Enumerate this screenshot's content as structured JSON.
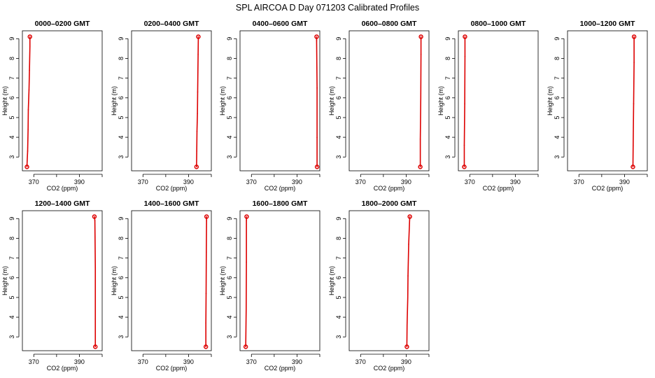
{
  "title": "SPL AIRCOA D  Day 071203  Calibrated Profiles",
  "chart_data": {
    "type": "line",
    "title": "SPL AIRCOA D  Day 071203  Calibrated Profiles",
    "xlabel": "CO2 (ppm)",
    "ylabel": "Height (m)",
    "xlim": [
      365,
      400
    ],
    "ylim": [
      2.3,
      9.4
    ],
    "xticks": [
      370,
      380,
      390,
      400
    ],
    "xtick_labels": [
      "370",
      "390"
    ],
    "yticks": [
      3,
      4,
      5,
      6,
      7,
      8,
      9
    ],
    "colors": {
      "line": "#dd0000",
      "marker": "#dd0000",
      "axis": "#000000"
    },
    "panels": [
      {
        "title": "0000–0200 GMT",
        "points": [
          {
            "x": 367.0,
            "y": 2.5
          },
          {
            "x": 367.1,
            "y": 2.8
          },
          {
            "x": 367.3,
            "y": 3.3
          },
          {
            "x": 367.5,
            "y": 4.4
          },
          {
            "x": 367.6,
            "y": 5.4
          },
          {
            "x": 367.9,
            "y": 6.4
          },
          {
            "x": 368.1,
            "y": 7.4
          },
          {
            "x": 368.3,
            "y": 8.6
          },
          {
            "x": 368.3,
            "y": 9.1
          }
        ]
      },
      {
        "title": "0200–0400 GMT",
        "points": [
          {
            "x": 393.5,
            "y": 2.5
          },
          {
            "x": 393.6,
            "y": 3.3
          },
          {
            "x": 393.7,
            "y": 4.3
          },
          {
            "x": 393.9,
            "y": 5.2
          },
          {
            "x": 394.0,
            "y": 6.3
          },
          {
            "x": 394.1,
            "y": 7.3
          },
          {
            "x": 394.2,
            "y": 8.2
          },
          {
            "x": 394.3,
            "y": 9.1
          }
        ]
      },
      {
        "title": "0400–0600 GMT",
        "points": [
          {
            "x": 398.8,
            "y": 2.5
          },
          {
            "x": 398.8,
            "y": 4.0
          },
          {
            "x": 398.8,
            "y": 6.5
          },
          {
            "x": 398.6,
            "y": 8.9
          },
          {
            "x": 398.6,
            "y": 9.1
          }
        ]
      },
      {
        "title": "0600–0800 GMT",
        "points": [
          {
            "x": 396.2,
            "y": 2.5
          },
          {
            "x": 396.2,
            "y": 3.9
          },
          {
            "x": 396.4,
            "y": 6.0
          },
          {
            "x": 396.5,
            "y": 8.2
          },
          {
            "x": 396.5,
            "y": 9.1
          }
        ]
      },
      {
        "title": "0800–1000 GMT",
        "points": [
          {
            "x": 367.6,
            "y": 2.5
          },
          {
            "x": 367.6,
            "y": 3.6
          },
          {
            "x": 367.8,
            "y": 5.7
          },
          {
            "x": 367.9,
            "y": 8.1
          },
          {
            "x": 367.9,
            "y": 9.1
          }
        ]
      },
      {
        "title": "1000–1200 GMT",
        "points": [
          {
            "x": 393.7,
            "y": 2.5
          },
          {
            "x": 393.8,
            "y": 3.6
          },
          {
            "x": 394.0,
            "y": 5.7
          },
          {
            "x": 394.2,
            "y": 7.8
          },
          {
            "x": 394.2,
            "y": 9.1
          }
        ]
      },
      {
        "title": "1200–1400 GMT",
        "points": [
          {
            "x": 397.0,
            "y": 2.5
          },
          {
            "x": 397.0,
            "y": 3.9
          },
          {
            "x": 397.0,
            "y": 6.5
          },
          {
            "x": 396.8,
            "y": 8.9
          },
          {
            "x": 396.6,
            "y": 9.1
          }
        ]
      },
      {
        "title": "1400–1600 GMT",
        "points": [
          {
            "x": 397.6,
            "y": 2.5
          },
          {
            "x": 397.6,
            "y": 3.7
          },
          {
            "x": 397.7,
            "y": 5.2
          },
          {
            "x": 397.8,
            "y": 7.3
          },
          {
            "x": 397.9,
            "y": 8.9
          },
          {
            "x": 397.9,
            "y": 9.1
          }
        ]
      },
      {
        "title": "1600–1800 GMT",
        "points": [
          {
            "x": 367.5,
            "y": 2.5
          },
          {
            "x": 367.7,
            "y": 4.4
          },
          {
            "x": 367.8,
            "y": 6.8
          },
          {
            "x": 367.8,
            "y": 8.9
          },
          {
            "x": 367.9,
            "y": 9.1
          }
        ]
      },
      {
        "title": "1800–2000 GMT",
        "points": [
          {
            "x": 390.3,
            "y": 2.5
          },
          {
            "x": 390.4,
            "y": 3.6
          },
          {
            "x": 390.7,
            "y": 5.0
          },
          {
            "x": 390.8,
            "y": 6.1
          },
          {
            "x": 391.1,
            "y": 7.7
          },
          {
            "x": 391.5,
            "y": 8.9
          },
          {
            "x": 391.6,
            "y": 9.1
          }
        ]
      }
    ]
  }
}
